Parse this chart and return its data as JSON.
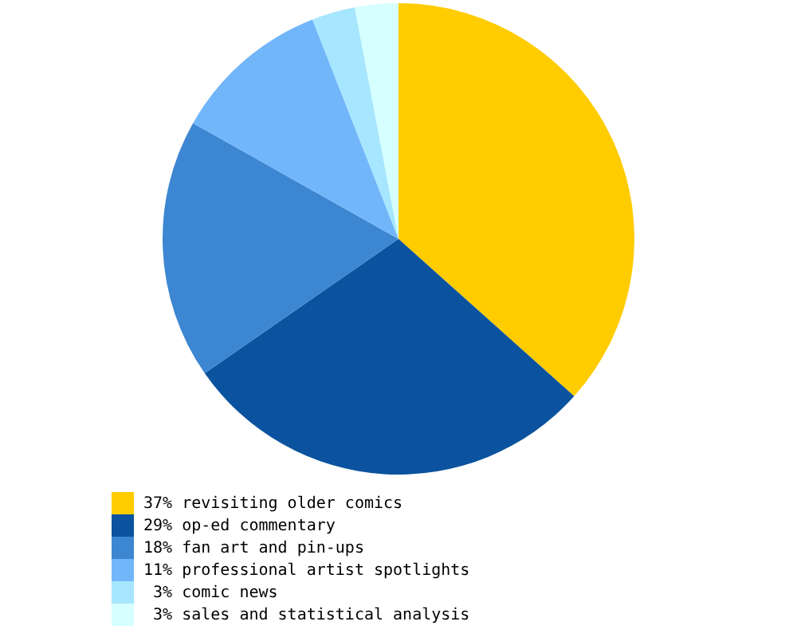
{
  "chart_data": {
    "type": "pie",
    "categories": [
      "37% revisiting older comics",
      "29% op-ed commentary",
      "18% fan art and pin-ups",
      "11% professional artist spotlights",
      " 3% comic news",
      " 3% sales and statistical analysis"
    ],
    "values": [
      37,
      29,
      18,
      11,
      3,
      3
    ],
    "colors": [
      "#ffcc00",
      "#0b539e",
      "#3d86d2",
      "#72b6fa",
      "#a6e6ff",
      "#d6ffff"
    ],
    "legend": "bottom left"
  }
}
